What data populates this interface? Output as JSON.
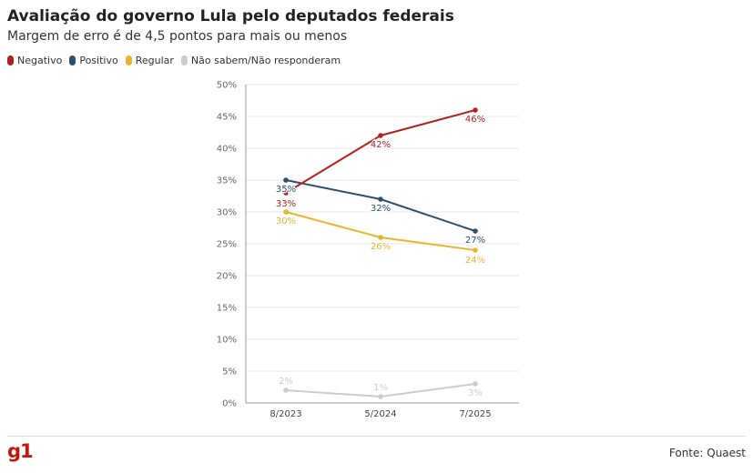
{
  "header": {
    "title": "Avaliação do governo Lula pelo deputados federais",
    "subtitle": "Margem de erro é de 4,5 pontos para mais ou menos"
  },
  "footer": {
    "logo": "g1",
    "source": "Fonte: Quaest"
  },
  "chart_data": {
    "type": "line",
    "categories": [
      "8/2023",
      "5/2024",
      "7/2025"
    ],
    "ylim": [
      0,
      50
    ],
    "yticks": [
      0,
      5,
      10,
      15,
      20,
      25,
      30,
      35,
      40,
      45,
      50
    ],
    "ytick_labels": [
      "0%",
      "5%",
      "10%",
      "15%",
      "20%",
      "25%",
      "30%",
      "35%",
      "40%",
      "45%",
      "50%"
    ],
    "grid": true,
    "legend_position": "top-left",
    "series": [
      {
        "name": "Negativo",
        "color": "#b3201f",
        "values": [
          33,
          42,
          46
        ],
        "labels": [
          "33%",
          "42%",
          "46%"
        ]
      },
      {
        "name": "Positivo",
        "color": "#2f4f6e",
        "values": [
          35,
          32,
          27
        ],
        "labels": [
          "35%",
          "32%",
          "27%"
        ]
      },
      {
        "name": "Regular",
        "color": "#e8b52e",
        "values": [
          30,
          26,
          24
        ],
        "labels": [
          "30%",
          "26%",
          "24%"
        ]
      },
      {
        "name": "Não sabem/Não responderam",
        "color": "#cccccc",
        "values": [
          2,
          1,
          3
        ],
        "labels": [
          "2%",
          "1%",
          "3%"
        ]
      }
    ]
  }
}
